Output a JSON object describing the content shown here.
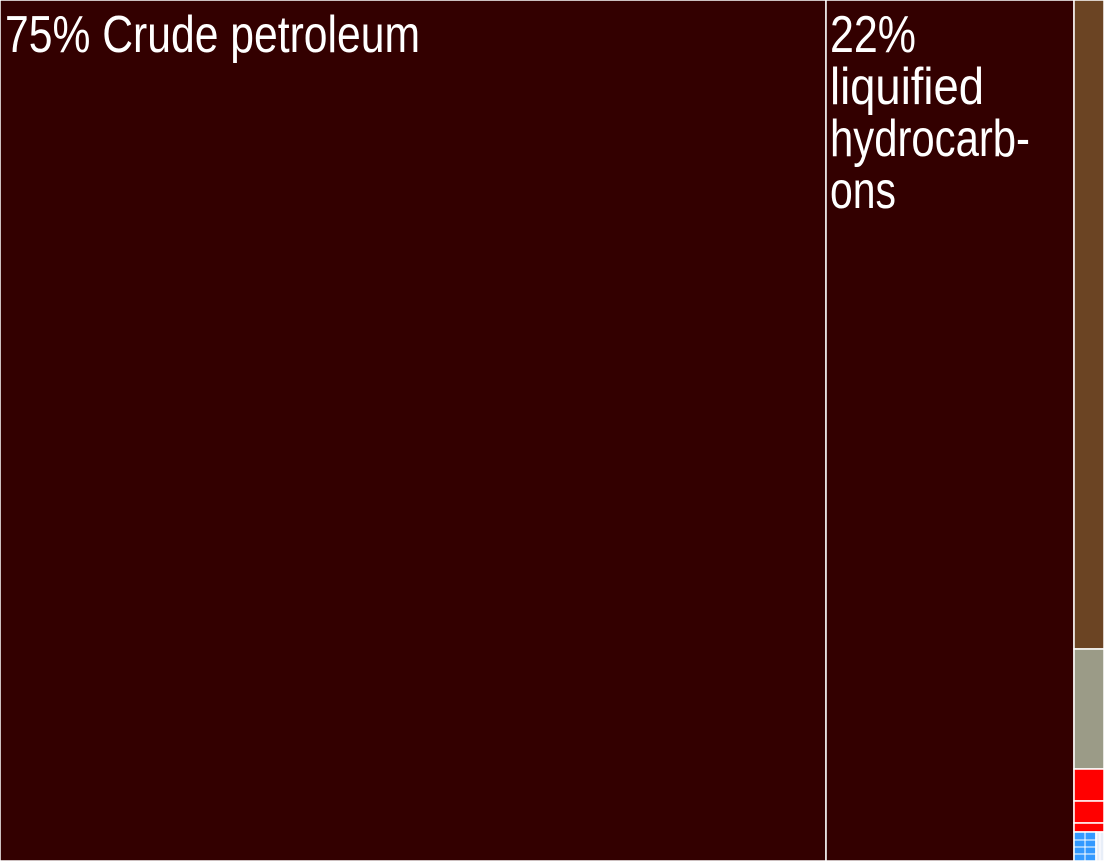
{
  "chart_data": {
    "type": "treemap",
    "title": "",
    "items": [
      {
        "id": "crude-petroleum",
        "label_lines": [
          "75% Crude petroleum"
        ],
        "value": 75,
        "color": "#330000"
      },
      {
        "id": "liquified-hydrocarbons",
        "label_lines": [
          "22%",
          "liquified",
          "hydrocarb-",
          "ons"
        ],
        "value": 22,
        "color": "#330000"
      },
      {
        "id": "brown-sector",
        "label_lines": [],
        "value": 2.0,
        "color": "#6b4423"
      },
      {
        "id": "gray-sector",
        "label_lines": [],
        "value": 0.5,
        "color": "#9b9b87"
      },
      {
        "id": "red-sector-1",
        "label_lines": [],
        "value": 0.15,
        "color": "#ff0000"
      },
      {
        "id": "red-sector-2",
        "label_lines": [],
        "value": 0.1,
        "color": "#ff0000"
      },
      {
        "id": "red-sector-3",
        "label_lines": [],
        "value": 0.05,
        "color": "#ff0000"
      },
      {
        "id": "blue-sector",
        "label_lines": [],
        "value": 0.15,
        "color": "#3399ff"
      },
      {
        "id": "pale-sector",
        "label_lines": [],
        "value": 0.05,
        "color": "#e8eef8"
      }
    ],
    "border_color": "#ffffff"
  }
}
